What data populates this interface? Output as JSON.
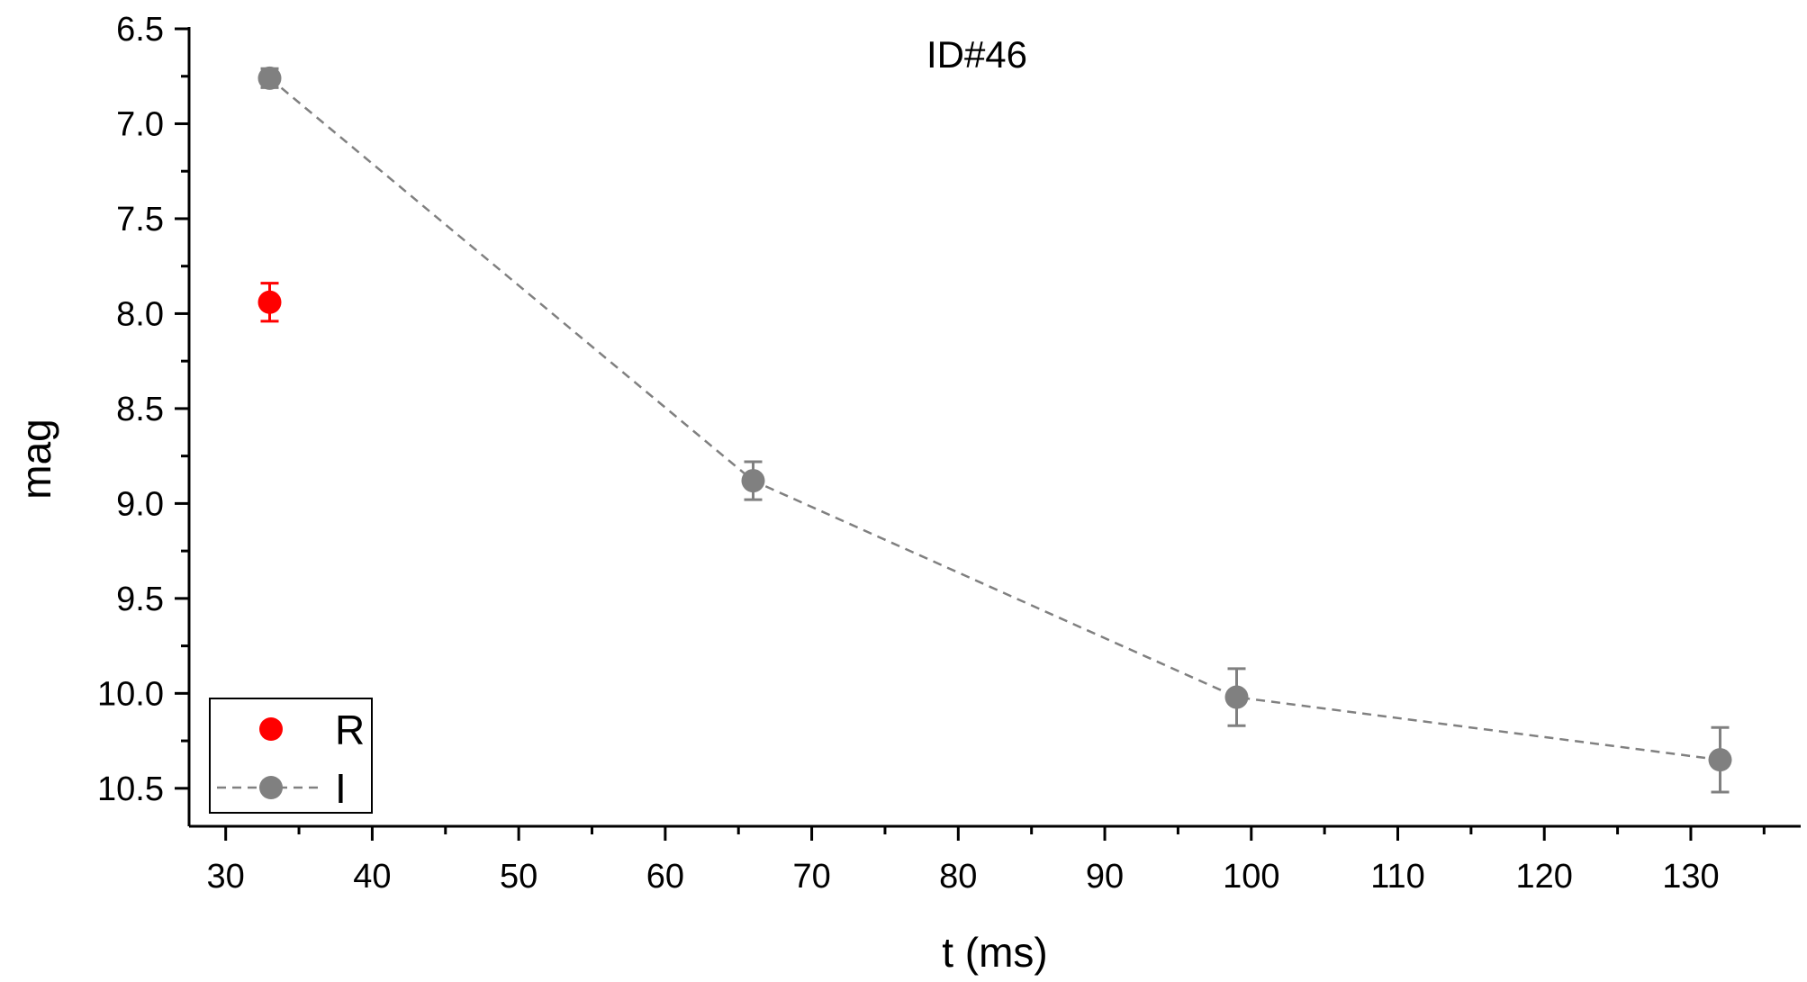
{
  "chart_data": {
    "type": "scatter",
    "title": "ID#46",
    "xlabel": "t (ms)",
    "ylabel": "mag",
    "xlim": [
      27.5,
      137.5
    ],
    "ylim": [
      6.5,
      10.7
    ],
    "y_inverted": true,
    "x_ticks": [
      30,
      40,
      50,
      60,
      70,
      80,
      90,
      100,
      110,
      120,
      130
    ],
    "y_ticks": [
      "6.5",
      "7.0",
      "7.5",
      "8.0",
      "8.5",
      "9.0",
      "9.5",
      "10.0",
      "10.5"
    ],
    "grid": false,
    "legend_position": "bottom-left",
    "series": [
      {
        "name": "R",
        "color": "#ff0000",
        "line": "none",
        "marker": "circle",
        "points": [
          {
            "x": 33,
            "y": 7.94,
            "err": 0.1
          }
        ]
      },
      {
        "name": "I",
        "color": "#808080",
        "line": "dashed",
        "marker": "circle",
        "points": [
          {
            "x": 33,
            "y": 6.76,
            "err": 0.05
          },
          {
            "x": 66,
            "y": 8.88,
            "err": 0.1
          },
          {
            "x": 99,
            "y": 10.02,
            "err": 0.15
          },
          {
            "x": 132,
            "y": 10.35,
            "err": 0.17
          }
        ]
      }
    ]
  }
}
